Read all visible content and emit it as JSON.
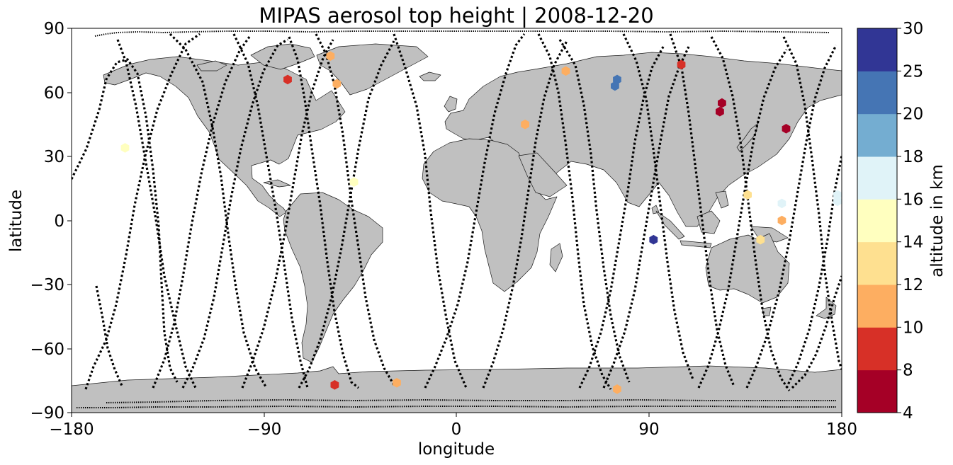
{
  "chart_data": {
    "type": "scatter",
    "title": "MIPAS aerosol top height | 2008-12-20",
    "xlabel": "longitude",
    "ylabel": "latitude",
    "xlim": [
      -180,
      180
    ],
    "ylim": [
      -90,
      90
    ],
    "xticks": [
      -180,
      -90,
      0,
      90,
      180
    ],
    "xtick_labels": [
      "−180",
      "−90",
      "0",
      "90",
      "180"
    ],
    "yticks": [
      -90,
      -60,
      -30,
      0,
      30,
      60,
      90
    ],
    "ytick_labels": [
      "−90",
      "−60",
      "−30",
      "0",
      "30",
      "60",
      "90"
    ],
    "colorbar": {
      "label": "altitude in km",
      "bounds": [
        4,
        8,
        10,
        12,
        14,
        16,
        18,
        20,
        25,
        30
      ],
      "tick_labels": [
        "4",
        "8",
        "10",
        "12",
        "14",
        "16",
        "18",
        "20",
        "25",
        "30"
      ],
      "colors": [
        "#a50026",
        "#d73027",
        "#f46d43",
        "#fdae61",
        "#fee090",
        "#ffffbf",
        "#e0f3f8",
        "#abd9e9",
        "#74add1",
        "#4575b4",
        "#313695"
      ]
    },
    "colors": {
      "land": "#c0c0c0",
      "coast": "#1a1a1a",
      "ocean": "#ffffff",
      "track": "#000000"
    },
    "detections": [
      {
        "lon": -59,
        "lat": 77,
        "alt": 11
      },
      {
        "lon": -56,
        "lat": 64,
        "alt": 11
      },
      {
        "lon": -79,
        "lat": 66,
        "alt": 9
      },
      {
        "lon": -155,
        "lat": 34,
        "alt": 15
      },
      {
        "lon": -48,
        "lat": 18,
        "alt": 15
      },
      {
        "lon": 32,
        "lat": 45,
        "alt": 11
      },
      {
        "lon": 51,
        "lat": 70,
        "alt": 11
      },
      {
        "lon": 75,
        "lat": 66,
        "alt": 22
      },
      {
        "lon": 74,
        "lat": 63,
        "alt": 22
      },
      {
        "lon": 105,
        "lat": 73,
        "alt": 9
      },
      {
        "lon": 124,
        "lat": 55,
        "alt": 6
      },
      {
        "lon": 123,
        "lat": 51,
        "alt": 6
      },
      {
        "lon": 154,
        "lat": 43,
        "alt": 6
      },
      {
        "lon": 136,
        "lat": 12,
        "alt": 13
      },
      {
        "lon": 152,
        "lat": 8,
        "alt": 17
      },
      {
        "lon": 152,
        "lat": 0,
        "alt": 11
      },
      {
        "lon": 178,
        "lat": 12,
        "alt": 17
      },
      {
        "lon": 178,
        "lat": 9,
        "alt": 17
      },
      {
        "lon": 142,
        "lat": -9,
        "alt": 13
      },
      {
        "lon": 92,
        "lat": -9,
        "alt": 27
      },
      {
        "lon": -57,
        "lat": -77,
        "alt": 9
      },
      {
        "lon": -28,
        "lat": -76,
        "alt": 11
      },
      {
        "lon": 75,
        "lat": -79,
        "alt": 11
      }
    ]
  }
}
